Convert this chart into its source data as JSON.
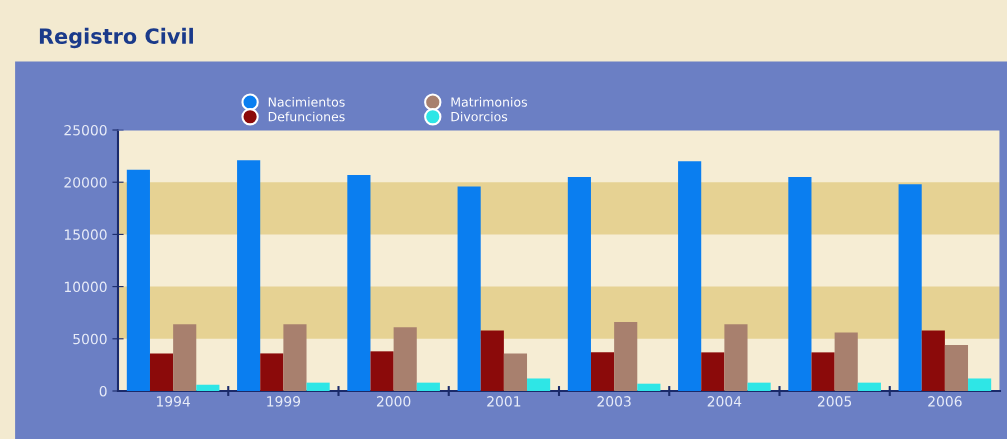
{
  "chart_data": {
    "type": "bar",
    "title": "Registro Civil",
    "categories": [
      "1994",
      "1999",
      "2000",
      "2001",
      "2003",
      "2004",
      "2005",
      "2006"
    ],
    "series": [
      {
        "name": "Nacimientos",
        "color": "#0a7ef0",
        "values": [
          21200,
          22100,
          20700,
          19600,
          20500,
          22000,
          20500,
          19800
        ]
      },
      {
        "name": "Defunciones",
        "color": "#8b0a0a",
        "values": [
          3600,
          3600,
          3800,
          5800,
          3700,
          3700,
          3700,
          5800
        ]
      },
      {
        "name": "Matrimonios",
        "color": "#a8806e",
        "values": [
          6400,
          6400,
          6100,
          3600,
          6600,
          6400,
          5600,
          4400
        ]
      },
      {
        "name": "Divorcios",
        "color": "#2ee6e6",
        "values": [
          600,
          800,
          800,
          1200,
          700,
          800,
          800,
          1200
        ]
      }
    ],
    "ylim": [
      0,
      25000
    ],
    "yticks": [
      0,
      5000,
      10000,
      15000,
      20000,
      25000
    ],
    "bands": [
      {
        "axis": "y",
        "from": 5000,
        "to": 10000,
        "color": "#e6d293"
      },
      {
        "axis": "y",
        "from": 15000,
        "to": 20000,
        "color": "#e6d293"
      }
    ],
    "grid": false,
    "legend": "top"
  }
}
